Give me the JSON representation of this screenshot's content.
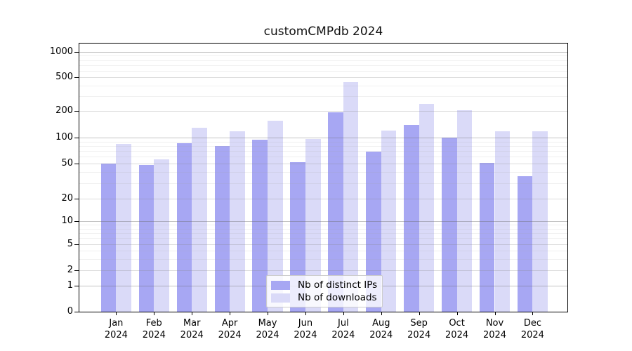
{
  "title": "customCMPdb 2024",
  "chart_data": {
    "type": "bar",
    "title": "customCMPdb 2024",
    "categories": [
      "Jan",
      "Feb",
      "Mar",
      "Apr",
      "May",
      "Jun",
      "Jul",
      "Aug",
      "Sep",
      "Oct",
      "Nov",
      "Dec"
    ],
    "category_year": "2024",
    "series": [
      {
        "name": "Nb of distinct IPs",
        "color": "#a7a7f3",
        "values": [
          50,
          48,
          86,
          80,
          95,
          52,
          193,
          69,
          140,
          100,
          51,
          36
        ]
      },
      {
        "name": "Nb of downloads",
        "color": "#dadaf8",
        "values": [
          85,
          56,
          128,
          118,
          154,
          96,
          435,
          120,
          240,
          202,
          118,
          118
        ]
      }
    ],
    "yscale": "symlog",
    "yticks": [
      0,
      1,
      2,
      5,
      10,
      20,
      50,
      100,
      200,
      500,
      1000
    ],
    "ylim": [
      0,
      1250
    ],
    "grid": true,
    "legend_position": "lower center"
  }
}
